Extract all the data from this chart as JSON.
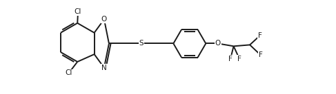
{
  "bg_color": "#ffffff",
  "line_color": "#1a1a1a",
  "line_width": 1.4,
  "font_size": 7.5,
  "figsize": [
    4.87,
    1.37
  ],
  "dpi": 100,
  "xlim": [
    0,
    9.5
  ],
  "ylim": [
    0,
    3.5
  ]
}
